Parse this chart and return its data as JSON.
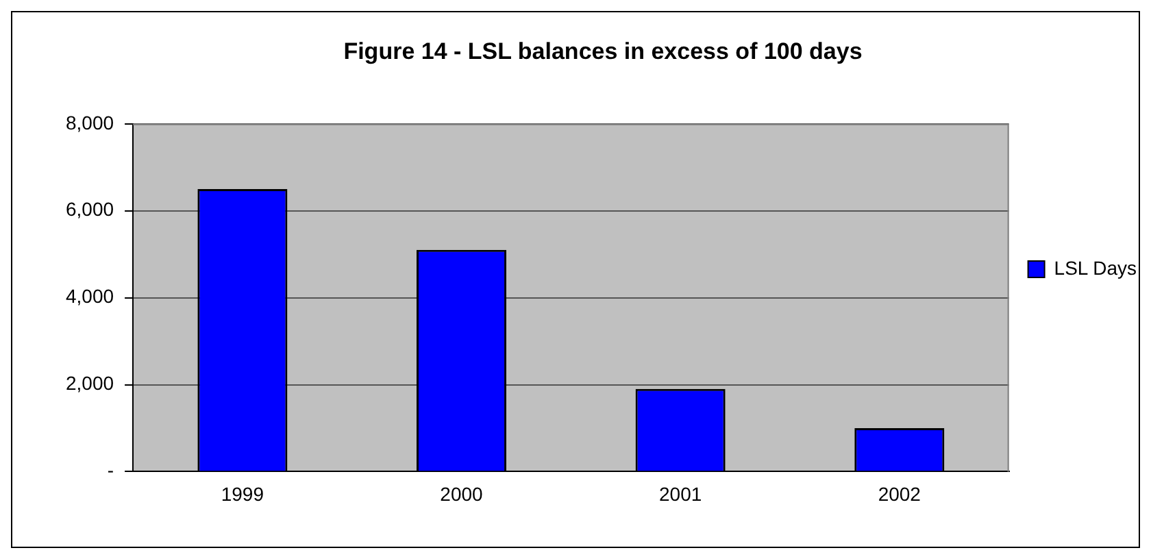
{
  "chart_data": {
    "type": "bar",
    "title": "Figure 14 - LSL balances in excess of 100 days",
    "categories": [
      "1999",
      "2000",
      "2001",
      "2002"
    ],
    "series": [
      {
        "name": "LSL Days",
        "color": "#0000ff",
        "values": [
          6500,
          5100,
          1900,
          1000
        ]
      }
    ],
    "ylim": [
      0,
      8000
    ],
    "yticks": [
      {
        "value": 0,
        "label": "-"
      },
      {
        "value": 2000,
        "label": "2,000"
      },
      {
        "value": 4000,
        "label": "4,000"
      },
      {
        "value": 6000,
        "label": "6,000"
      },
      {
        "value": 8000,
        "label": "8,000"
      }
    ],
    "grid": "y",
    "legend": "right"
  }
}
